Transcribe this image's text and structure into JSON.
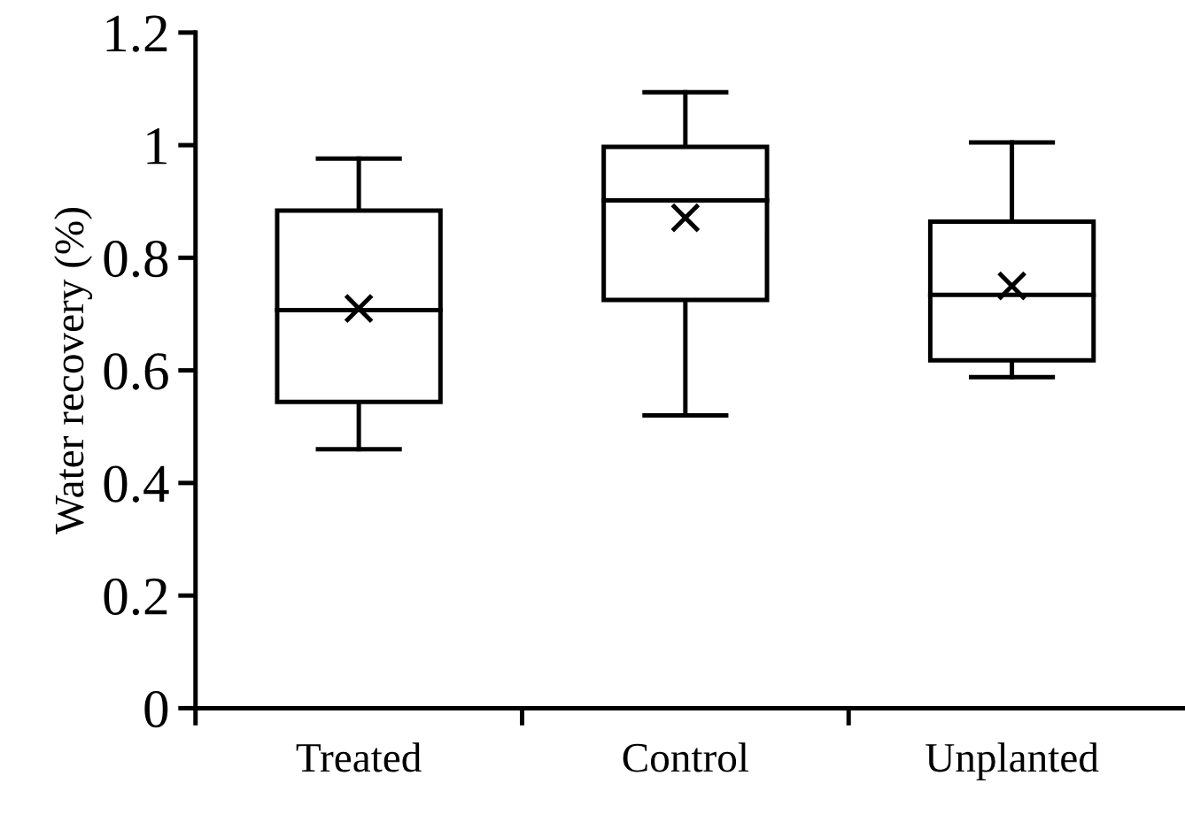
{
  "chart_data": {
    "type": "box",
    "ylabel": "Water recovery (%)",
    "categories": [
      "Treated",
      "Control",
      "Unplanted"
    ],
    "boxes": [
      {
        "low": 0.46,
        "q1": 0.544,
        "median": 0.707,
        "q3": 0.884,
        "high": 0.976,
        "mean": 0.71
      },
      {
        "low": 0.52,
        "q1": 0.725,
        "median": 0.902,
        "q3": 0.997,
        "high": 1.094,
        "mean": 0.871
      },
      {
        "low": 0.588,
        "q1": 0.618,
        "median": 0.734,
        "q3": 0.864,
        "high": 1.005,
        "mean": 0.75
      }
    ],
    "ylim": [
      0,
      1.2
    ],
    "yticks": [
      0,
      0.2,
      0.4,
      0.6,
      0.8,
      1,
      1.2
    ],
    "grid": false,
    "legend": false,
    "marker": "cross"
  }
}
